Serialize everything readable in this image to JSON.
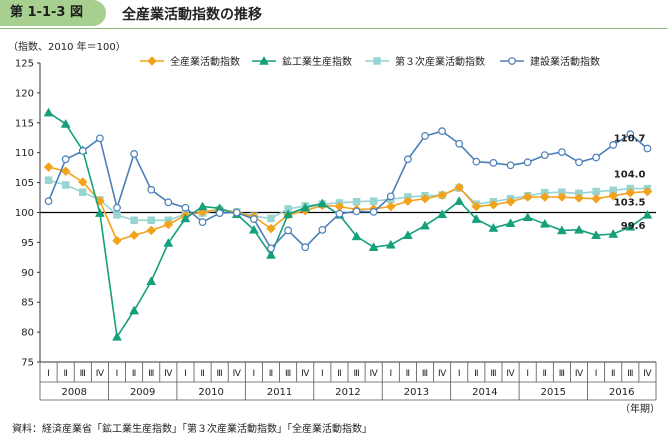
{
  "figure": {
    "label": "第 1-1-3 図",
    "title": "全産業活動指数の推移",
    "source": "資料：経済産業省「鉱工業生産指数」「第３次産業活動指数」「全産業活動指数」"
  },
  "chart_data": {
    "type": "line",
    "ylabel": "（指数、2010 年＝100）",
    "xunit": "（年期）",
    "ylim": [
      75,
      125
    ],
    "yticks": [
      75,
      80,
      85,
      90,
      95,
      100,
      105,
      110,
      115,
      120,
      125
    ],
    "reference_line": 100,
    "quarters": [
      "Ⅰ",
      "Ⅱ",
      "Ⅲ",
      "Ⅳ",
      "Ⅰ",
      "Ⅱ",
      "Ⅲ",
      "Ⅳ",
      "Ⅰ",
      "Ⅱ",
      "Ⅲ",
      "Ⅳ",
      "Ⅰ",
      "Ⅱ",
      "Ⅲ",
      "Ⅳ",
      "Ⅰ",
      "Ⅱ",
      "Ⅲ",
      "Ⅳ",
      "Ⅰ",
      "Ⅱ",
      "Ⅲ",
      "Ⅳ",
      "Ⅰ",
      "Ⅱ",
      "Ⅲ",
      "Ⅳ",
      "Ⅰ",
      "Ⅱ",
      "Ⅲ",
      "Ⅳ",
      "Ⅰ",
      "Ⅱ",
      "Ⅲ",
      "Ⅳ"
    ],
    "years": [
      "2008",
      "2009",
      "2010",
      "2011",
      "2012",
      "2013",
      "2014",
      "2015",
      "2016"
    ],
    "legend_position": "top",
    "series": [
      {
        "name": "全産業活動指数",
        "color": "#f3a21b",
        "marker": "diamond",
        "end_label": "103.5",
        "values": [
          107.6,
          106.9,
          105.1,
          101.9,
          95.3,
          96.2,
          97.0,
          98.0,
          99.5,
          100.1,
          100.5,
          100.0,
          99.3,
          97.3,
          99.6,
          100.3,
          101.2,
          101.0,
          100.5,
          100.6,
          101.0,
          101.9,
          102.3,
          102.9,
          104.2,
          101.0,
          101.3,
          101.8,
          102.6,
          102.6,
          102.6,
          102.4,
          102.3,
          102.8,
          103.3,
          103.5
        ]
      },
      {
        "name": "鉱工業生産指数",
        "color": "#15a07c",
        "marker": "triangle",
        "end_label": "99.6",
        "values": [
          116.7,
          114.8,
          110.4,
          99.9,
          79.2,
          83.6,
          88.5,
          94.9,
          99.0,
          101.0,
          100.7,
          99.7,
          97.1,
          92.9,
          99.7,
          100.8,
          101.5,
          99.6,
          96.0,
          94.2,
          94.6,
          96.2,
          97.8,
          99.7,
          101.9,
          98.9,
          97.4,
          98.2,
          99.2,
          98.1,
          97.0,
          97.1,
          96.2,
          96.4,
          97.6,
          99.6
        ]
      },
      {
        "name": "第３次産業活動指数",
        "color": "#98d4d2",
        "marker": "square",
        "end_label": "104.0",
        "values": [
          105.4,
          104.6,
          103.4,
          102.1,
          99.6,
          98.7,
          98.7,
          98.7,
          99.7,
          99.9,
          100.5,
          100.1,
          99.4,
          99.0,
          100.6,
          101.1,
          101.4,
          101.6,
          101.8,
          101.9,
          102.2,
          102.6,
          102.8,
          102.9,
          104.1,
          101.4,
          101.8,
          102.3,
          102.8,
          103.3,
          103.4,
          103.2,
          103.5,
          103.7,
          104.0,
          104.0
        ]
      },
      {
        "name": "建設業活動指数",
        "color": "#4c7fb9",
        "marker": "circle",
        "end_label": "110.7",
        "values": [
          101.9,
          108.9,
          110.3,
          112.4,
          100.8,
          109.8,
          103.8,
          101.7,
          100.8,
          98.4,
          99.9,
          100.0,
          98.9,
          94.0,
          97.0,
          94.2,
          97.1,
          99.8,
          100.2,
          100.1,
          102.7,
          108.9,
          112.8,
          113.6,
          111.5,
          108.5,
          108.3,
          107.9,
          108.4,
          109.6,
          110.1,
          108.4,
          109.2,
          111.3,
          113.1,
          110.7
        ]
      }
    ]
  }
}
